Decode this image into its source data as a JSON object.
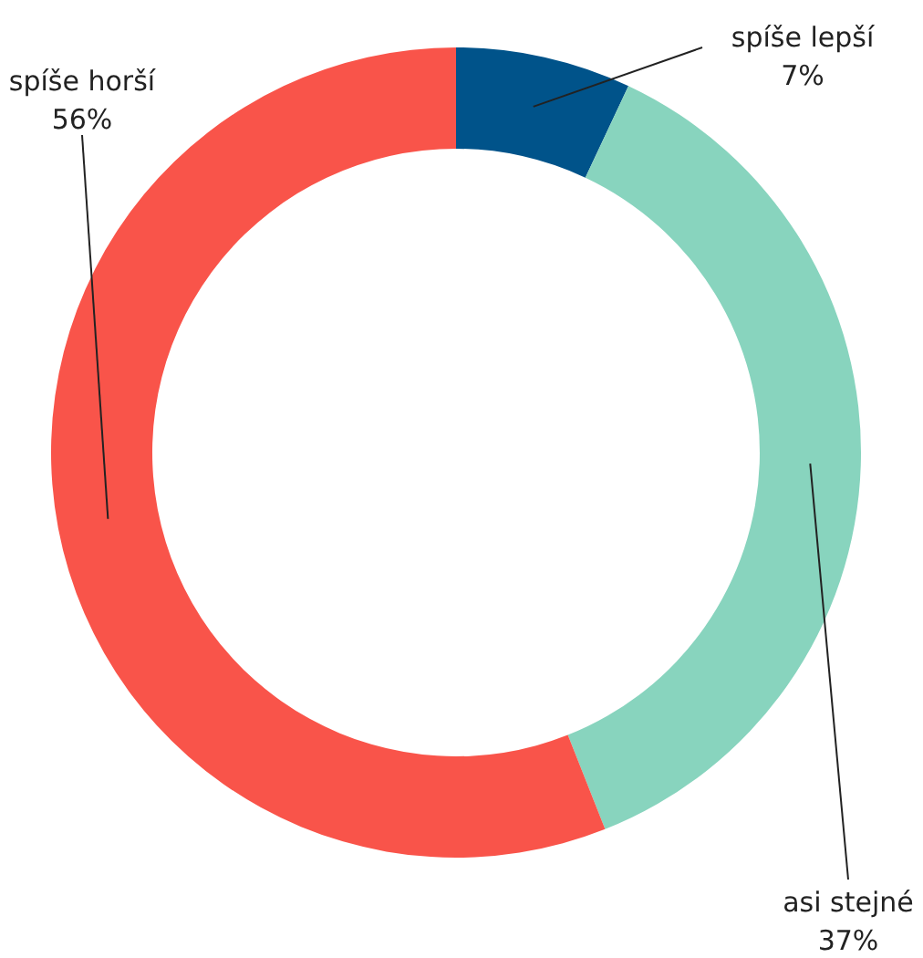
{
  "chart_data": {
    "type": "donut",
    "categories": [
      "spíše lepší",
      "asi stejné",
      "spíše horší"
    ],
    "values": [
      7,
      37,
      56
    ],
    "value_labels": [
      "7%",
      "37%",
      "56%"
    ],
    "colors": [
      "#00538a",
      "#88d4be",
      "#f9544a"
    ],
    "legend": false
  }
}
